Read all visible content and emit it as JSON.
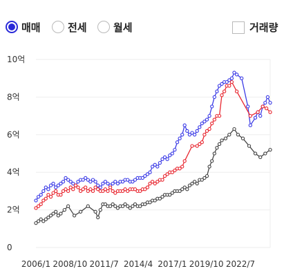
{
  "filters": {
    "trade_types": [
      {
        "label": "매매",
        "checked": true
      },
      {
        "label": "전세",
        "checked": false
      },
      {
        "label": "월세",
        "checked": false
      }
    ],
    "volume": {
      "label": "거래량",
      "checked": false
    }
  },
  "colors": {
    "sale": "#3a3ae6",
    "jeonse": "#e8262f",
    "third": "#444444",
    "grid": "#eeeeee",
    "accent": "#2a2ad8"
  },
  "chart_data": {
    "type": "line",
    "y_ticks": [
      "0",
      "2억",
      "4억",
      "6억",
      "8억",
      "10억"
    ],
    "x_ticks": [
      "2006/1",
      "2008/10",
      "2011/7",
      "2014/4",
      "2017/1",
      "2019/10",
      "2022/7"
    ],
    "x_tick_years": [
      2006.0,
      2008.75,
      2011.5,
      2014.25,
      2017.0,
      2019.75,
      2022.5
    ],
    "xlim": [
      2006.0,
      2024.9
    ],
    "ylim": [
      0,
      10
    ],
    "y_unit": "억",
    "series": [
      {
        "key": "sale",
        "x": [
          2006.0,
          2006.2,
          2006.4,
          2006.6,
          2006.8,
          2007.0,
          2007.2,
          2007.4,
          2007.6,
          2007.8,
          2008.0,
          2008.2,
          2008.4,
          2008.6,
          2008.8,
          2009.0,
          2009.2,
          2009.4,
          2009.6,
          2009.8,
          2010.0,
          2010.2,
          2010.4,
          2010.6,
          2010.8,
          2011.0,
          2011.2,
          2011.4,
          2011.6,
          2011.8,
          2012.0,
          2012.2,
          2012.4,
          2012.6,
          2012.8,
          2013.0,
          2013.2,
          2013.4,
          2013.6,
          2013.8,
          2014.0,
          2014.2,
          2014.4,
          2014.6,
          2014.8,
          2015.0,
          2015.2,
          2015.4,
          2015.6,
          2015.8,
          2016.0,
          2016.2,
          2016.4,
          2016.6,
          2016.8,
          2017.0,
          2017.2,
          2017.4,
          2017.6,
          2017.8,
          2018.0,
          2018.2,
          2018.4,
          2018.6,
          2018.8,
          2019.0,
          2019.2,
          2019.4,
          2019.6,
          2019.8,
          2020.0,
          2020.2,
          2020.4,
          2020.6,
          2020.8,
          2021.0,
          2021.2,
          2021.4,
          2021.6,
          2021.8,
          2022.0,
          2022.2,
          2022.6,
          2023.1,
          2023.3,
          2023.7,
          2023.9,
          2024.1,
          2024.3,
          2024.5,
          2024.7,
          2024.9
        ],
        "values": [
          2.5,
          2.7,
          2.8,
          3.0,
          3.2,
          3.1,
          3.3,
          3.4,
          3.2,
          3.3,
          3.4,
          3.5,
          3.7,
          3.6,
          3.5,
          3.4,
          3.3,
          3.5,
          3.6,
          3.6,
          3.7,
          3.6,
          3.5,
          3.6,
          3.5,
          3.3,
          3.2,
          3.4,
          3.5,
          3.4,
          3.3,
          3.4,
          3.5,
          3.4,
          3.5,
          3.5,
          3.6,
          3.6,
          3.5,
          3.5,
          3.6,
          3.7,
          3.7,
          3.7,
          3.8,
          3.9,
          4.0,
          4.3,
          4.4,
          4.3,
          4.5,
          4.7,
          4.8,
          4.7,
          4.9,
          5.0,
          5.2,
          5.6,
          5.8,
          6.0,
          6.5,
          6.2,
          6.0,
          6.1,
          6.0,
          6.2,
          6.4,
          6.6,
          6.7,
          6.8,
          7.0,
          7.5,
          8.0,
          8.3,
          8.6,
          8.7,
          8.8,
          8.8,
          8.9,
          9.0,
          9.3,
          9.2,
          9.0,
          7.5,
          6.5,
          6.9,
          7.2,
          7.0,
          7.5,
          7.7,
          8.0,
          7.7
        ]
      },
      {
        "key": "jeonse",
        "x": [
          2006.0,
          2006.2,
          2006.4,
          2006.6,
          2006.8,
          2007.0,
          2007.2,
          2007.4,
          2007.6,
          2007.8,
          2008.0,
          2008.2,
          2008.4,
          2008.6,
          2008.8,
          2009.0,
          2009.2,
          2009.4,
          2009.6,
          2009.8,
          2010.0,
          2010.2,
          2010.4,
          2010.6,
          2010.8,
          2011.0,
          2011.2,
          2011.4,
          2011.6,
          2011.8,
          2012.0,
          2012.2,
          2012.4,
          2012.6,
          2012.8,
          2013.0,
          2013.2,
          2013.4,
          2013.6,
          2013.8,
          2014.0,
          2014.2,
          2014.4,
          2014.6,
          2014.8,
          2015.0,
          2015.2,
          2015.4,
          2015.6,
          2015.8,
          2016.0,
          2016.2,
          2016.4,
          2016.6,
          2016.8,
          2017.0,
          2017.2,
          2017.4,
          2017.6,
          2017.8,
          2018.0,
          2018.6,
          2019.0,
          2019.2,
          2019.4,
          2019.6,
          2019.8,
          2020.0,
          2020.2,
          2020.4,
          2020.6,
          2020.8,
          2021.0,
          2021.2,
          2021.4,
          2021.6,
          2021.8,
          2022.2,
          2023.3,
          2023.9,
          2024.3,
          2024.6,
          2024.9
        ],
        "values": [
          2.1,
          2.2,
          2.3,
          2.5,
          2.6,
          2.8,
          2.7,
          2.9,
          3.0,
          2.8,
          2.8,
          3.0,
          3.1,
          3.0,
          3.2,
          3.1,
          3.3,
          3.2,
          3.0,
          3.1,
          3.2,
          3.0,
          3.1,
          3.0,
          3.2,
          3.1,
          3.0,
          3.0,
          3.1,
          3.0,
          3.2,
          3.0,
          2.9,
          3.0,
          3.0,
          3.0,
          3.1,
          3.0,
          3.1,
          3.1,
          3.1,
          3.0,
          3.0,
          3.1,
          3.1,
          3.2,
          3.4,
          3.5,
          3.4,
          3.5,
          3.6,
          3.6,
          3.8,
          3.9,
          4.0,
          4.0,
          4.1,
          4.2,
          4.2,
          4.3,
          4.6,
          5.4,
          5.4,
          5.5,
          5.6,
          6.0,
          6.2,
          6.3,
          6.6,
          6.8,
          7.0,
          7.0,
          8.1,
          8.3,
          8.6,
          8.6,
          8.8,
          8.3,
          7.0,
          7.2,
          7.5,
          7.4,
          7.2
        ]
      },
      {
        "key": "third",
        "x": [
          2006.0,
          2006.2,
          2006.4,
          2006.6,
          2006.8,
          2007.0,
          2007.2,
          2007.4,
          2007.6,
          2007.8,
          2008.0,
          2008.3,
          2008.6,
          2009.1,
          2009.6,
          2010.2,
          2010.8,
          2011.0,
          2011.2,
          2011.4,
          2011.6,
          2011.8,
          2012.0,
          2012.2,
          2012.4,
          2012.6,
          2012.8,
          2013.0,
          2013.2,
          2013.4,
          2013.6,
          2013.8,
          2014.0,
          2014.2,
          2014.4,
          2014.6,
          2014.8,
          2015.0,
          2015.2,
          2015.4,
          2015.6,
          2015.8,
          2016.0,
          2016.2,
          2016.4,
          2016.6,
          2016.8,
          2017.0,
          2017.2,
          2017.4,
          2017.6,
          2017.8,
          2018.0,
          2018.2,
          2018.4,
          2018.6,
          2018.8,
          2019.0,
          2019.2,
          2019.4,
          2019.6,
          2019.8,
          2020.0,
          2020.2,
          2020.4,
          2020.6,
          2020.8,
          2021.0,
          2021.3,
          2021.6,
          2022.0,
          2022.3,
          2022.7,
          2023.2,
          2023.7,
          2024.1,
          2024.5,
          2024.9
        ],
        "values": [
          1.3,
          1.4,
          1.5,
          1.4,
          1.5,
          1.6,
          1.7,
          1.8,
          1.9,
          1.7,
          1.8,
          2.0,
          2.2,
          1.7,
          1.9,
          2.2,
          1.9,
          1.6,
          2.0,
          2.3,
          2.3,
          2.2,
          2.2,
          2.3,
          2.2,
          2.1,
          2.2,
          2.2,
          2.3,
          2.2,
          2.1,
          2.2,
          2.3,
          2.2,
          2.2,
          2.3,
          2.3,
          2.4,
          2.4,
          2.5,
          2.5,
          2.6,
          2.6,
          2.7,
          2.8,
          2.8,
          2.8,
          2.9,
          3.0,
          3.0,
          3.0,
          3.1,
          3.2,
          3.1,
          3.3,
          3.4,
          3.5,
          3.4,
          3.6,
          3.6,
          3.7,
          3.8,
          4.3,
          4.6,
          5.0,
          5.3,
          5.5,
          5.7,
          5.8,
          6.0,
          6.3,
          6.0,
          5.8,
          5.4,
          5.0,
          4.8,
          5.0,
          5.2
        ]
      }
    ]
  }
}
